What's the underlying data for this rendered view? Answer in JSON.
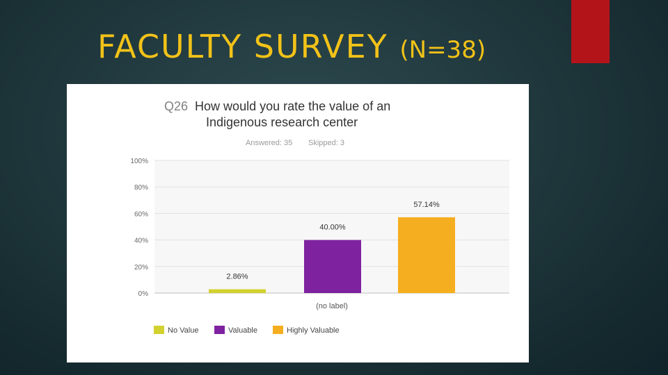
{
  "slide": {
    "title": "FACULTY SURVEY",
    "n_label": "(N=38)",
    "accent_color": "#b3141a",
    "title_color": "#f2c218"
  },
  "question": {
    "number": "Q26",
    "text_line1": "How would you rate the value of an",
    "text_line2": "Indigenous research center",
    "answered": "Answered: 35",
    "skipped": "Skipped: 3"
  },
  "chart_data": {
    "type": "bar",
    "categories": [
      "(no label)"
    ],
    "series": [
      {
        "name": "No Value",
        "values": [
          2.86
        ],
        "label": "2.86%",
        "color": "#d3d130"
      },
      {
        "name": "Valuable",
        "values": [
          40.0
        ],
        "label": "40.00%",
        "color": "#7e22a0"
      },
      {
        "name": "Highly Valuable",
        "values": [
          57.14
        ],
        "label": "57.14%",
        "color": "#f5ae1f"
      }
    ],
    "ylim": [
      0,
      100
    ],
    "y_ticks": [
      {
        "value": 0,
        "label": "0%"
      },
      {
        "value": 20,
        "label": "20%"
      },
      {
        "value": 40,
        "label": "40%"
      },
      {
        "value": 60,
        "label": "60%"
      },
      {
        "value": 80,
        "label": "80%"
      },
      {
        "value": 100,
        "label": "100%"
      }
    ],
    "grid": true,
    "legend_position": "bottom"
  }
}
